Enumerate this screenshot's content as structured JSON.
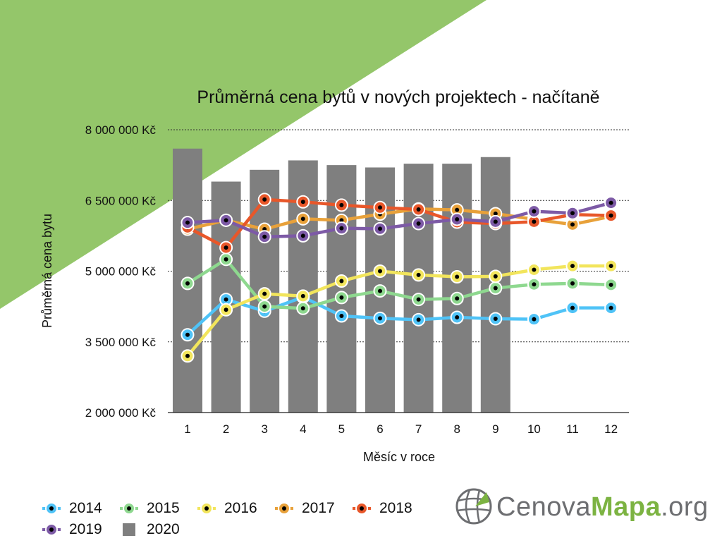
{
  "chart_data": {
    "type": "line",
    "title": "Průměrná cena bytů v nových projektech - načítaně",
    "xlabel": "Měsíc v roce",
    "ylabel": "Průměrná cena bytu",
    "categories": [
      "1",
      "2",
      "3",
      "4",
      "5",
      "6",
      "7",
      "8",
      "9",
      "10",
      "11",
      "12"
    ],
    "ylim": [
      2000000,
      8000000
    ],
    "yticks": [
      {
        "value": 8000000,
        "label": "8 000 000 Kč"
      },
      {
        "value": 6500000,
        "label": "6 500 000 Kč"
      },
      {
        "value": 5000000,
        "label": "5 000 000 Kč"
      },
      {
        "value": 3500000,
        "label": "3 500 000 Kč"
      },
      {
        "value": 2000000,
        "label": "2 000 000 Kč"
      }
    ],
    "grid": true,
    "legend_position": "bottom-left",
    "bars": {
      "name": "2020",
      "color": "#7f7f7f",
      "values": [
        7600000,
        6900000,
        7150000,
        7350000,
        7250000,
        7200000,
        7280000,
        7280000,
        7420000,
        null,
        null,
        null
      ]
    },
    "series": [
      {
        "name": "2014",
        "color": "#4fc3f7",
        "values": [
          3650000,
          4400000,
          4150000,
          4450000,
          4050000,
          4000000,
          3970000,
          4020000,
          3990000,
          3980000,
          4220000,
          4220000
        ]
      },
      {
        "name": "2015",
        "color": "#8ed88f",
        "values": [
          4740000,
          5250000,
          4250000,
          4210000,
          4440000,
          4580000,
          4400000,
          4420000,
          4640000,
          4720000,
          4740000,
          4710000
        ]
      },
      {
        "name": "2016",
        "color": "#f2e55c",
        "values": [
          3200000,
          4180000,
          4520000,
          4470000,
          4790000,
          5000000,
          4920000,
          4880000,
          4890000,
          5030000,
          5110000,
          5110000
        ]
      },
      {
        "name": "2017",
        "color": "#e8a13a",
        "values": [
          5890000,
          6080000,
          5890000,
          6110000,
          6080000,
          6210000,
          6320000,
          6300000,
          6220000,
          6100000,
          5990000,
          6160000
        ]
      },
      {
        "name": "2018",
        "color": "#e8572a",
        "values": [
          5930000,
          5500000,
          6520000,
          6470000,
          6400000,
          6350000,
          6310000,
          6040000,
          6010000,
          6050000,
          6200000,
          6180000
        ]
      },
      {
        "name": "2019",
        "color": "#7d5aa6",
        "values": [
          6030000,
          6080000,
          5730000,
          5750000,
          5910000,
          5900000,
          6010000,
          6100000,
          6050000,
          6270000,
          6230000,
          6450000
        ]
      }
    ]
  },
  "legend": [
    {
      "label": "2014",
      "color": "#4fc3f7",
      "kind": "line"
    },
    {
      "label": "2015",
      "color": "#8ed88f",
      "kind": "line"
    },
    {
      "label": "2016",
      "color": "#f2e55c",
      "kind": "line"
    },
    {
      "label": "2017",
      "color": "#e8a13a",
      "kind": "line"
    },
    {
      "label": "2018",
      "color": "#e8572a",
      "kind": "line"
    },
    {
      "label": "2019",
      "color": "#7d5aa6",
      "kind": "line"
    },
    {
      "label": "2020",
      "color": "#7f7f7f",
      "kind": "bar"
    }
  ],
  "logo": {
    "part1": "Cenova",
    "part2": "Mapa",
    "part3": ".org"
  },
  "colors": {
    "background_triangle": "#94c66a",
    "bar": "#7f7f7f",
    "logo_grey": "#6d6e71",
    "logo_green": "#7cb342"
  }
}
